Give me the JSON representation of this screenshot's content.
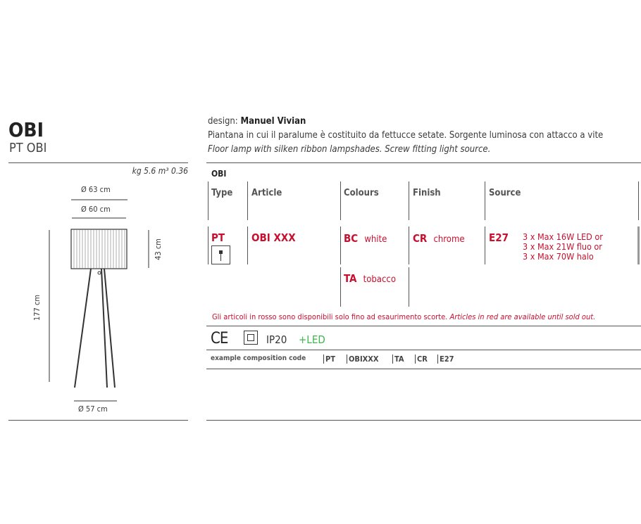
{
  "product": {
    "name": "OBI",
    "code": "PT OBI",
    "weight_volume": "kg 5.6 m³ 0.36"
  },
  "dimensions": {
    "outer_diameter": "Ø 63 cm",
    "shade_diameter": "Ø 60 cm",
    "height": "177 cm",
    "shade_height": "43 cm",
    "base_diameter": "Ø 57 cm"
  },
  "design": {
    "label": "design:",
    "designer": "Manuel Vivian"
  },
  "description": {
    "it": "Piantana in cui il paralume è costituito da fettucce setate. Sorgente luminosa con attacco a vite",
    "en": "Floor lamp with silken ribbon lampshades. Screw fitting light source."
  },
  "table": {
    "title": "OBI",
    "headers": [
      "Type",
      "Article",
      "Colours",
      "Finish",
      "Source"
    ],
    "type_code": "PT",
    "article": "OBI XXX",
    "colours": [
      {
        "code": "BC",
        "name": "white"
      },
      {
        "code": "TA",
        "name": "tobacco"
      }
    ],
    "finish": {
      "code": "CR",
      "name": "chrome"
    },
    "source": {
      "code": "E27",
      "lines": [
        "3 x Max 16W LED or",
        "3 x Max 21W fluo or",
        "3 x Max 70W halo"
      ]
    }
  },
  "note": {
    "it": "Gli articoli in rosso sono disponibili solo fino ad esaurimento scorte.",
    "en": "Articles in red are available until sold out."
  },
  "certifications": {
    "ce": "CE",
    "ip": "IP20",
    "led": "+LED",
    "icons": [
      "ce-mark-icon",
      "class-ii-insulation-icon"
    ]
  },
  "composition": {
    "label": "example composition code",
    "parts": [
      "PT",
      "OBIXXX",
      "TA",
      "CR",
      "E27"
    ]
  },
  "colors": {
    "accent_red": "#c8102e",
    "led_green": "#3db54a"
  }
}
